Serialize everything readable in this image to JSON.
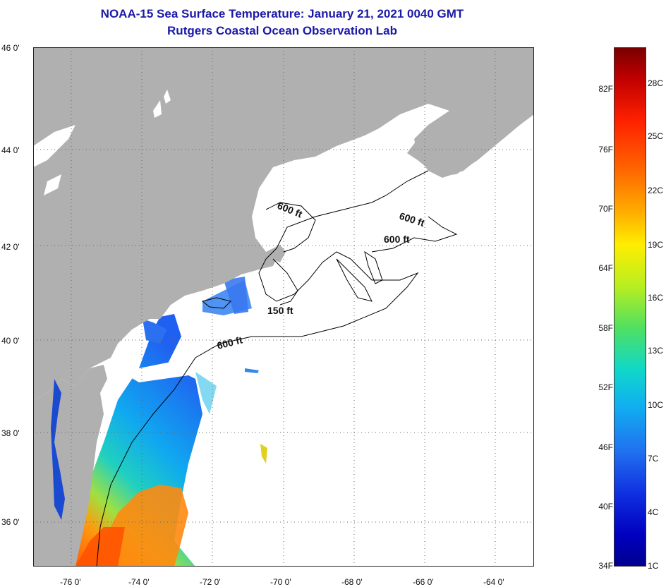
{
  "title": {
    "line1": "NOAA-15 Sea Surface Temperature:  January 21, 2021 0040 GMT",
    "line2": "Rutgers Coastal Ocean Observation Lab"
  },
  "axes": {
    "lat_labels": [
      "46 0'",
      "44 0'",
      "42 0'",
      "40 0'",
      "38 0'",
      "36 0'"
    ],
    "lon_labels": [
      "-76 0'",
      "-74 0'",
      "-72 0'",
      "-70 0'",
      "-68 0'",
      "-66 0'",
      "-64 0'"
    ]
  },
  "contours": {
    "labels": [
      "600 ft",
      "600 ft",
      "600 ft",
      "150 ft",
      "600 ft"
    ]
  },
  "colorbar": {
    "fahrenheit": [
      "82F",
      "76F",
      "70F",
      "64F",
      "58F",
      "52F",
      "46F",
      "40F",
      "34F"
    ],
    "celsius": [
      "28C",
      "25C",
      "22C",
      "19C",
      "16C",
      "13C",
      "10C",
      "7C",
      "4C",
      "1C"
    ]
  },
  "colors": {
    "land": "#b0b0b0",
    "ocean": "#ffffff",
    "title": "#1a1aa8"
  }
}
